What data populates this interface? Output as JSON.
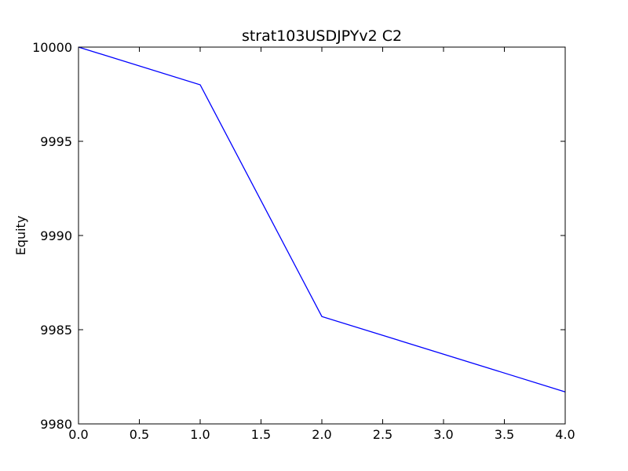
{
  "chart_data": {
    "type": "line",
    "title": "strat103USDJPYv2 C2",
    "xlabel": "",
    "ylabel": "Equity",
    "xlim": [
      0,
      4
    ],
    "ylim": [
      9980,
      10000
    ],
    "x_ticks": [
      "0.0",
      "0.5",
      "1.0",
      "1.5",
      "2.0",
      "2.5",
      "3.0",
      "3.5",
      "4.0"
    ],
    "y_ticks": [
      "9980",
      "9985",
      "9990",
      "9995",
      "10000"
    ],
    "grid": false,
    "series": [
      {
        "color": "#0000ff",
        "x": [
          0,
          1,
          2,
          4
        ],
        "y": [
          10000,
          9998,
          9985.7,
          9981.7
        ]
      }
    ]
  }
}
